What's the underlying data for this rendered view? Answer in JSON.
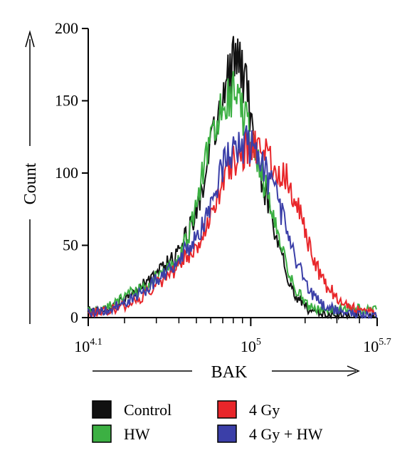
{
  "chart_data": {
    "type": "line",
    "title": "",
    "xlabel": "BAK",
    "ylabel": "Count",
    "x_scale": "log10",
    "xlim_log10": [
      4.1,
      5.7
    ],
    "ylim": [
      0,
      200
    ],
    "x_ticks": [
      {
        "base": "10",
        "exp": "4.1",
        "log10": 4.1
      },
      {
        "base": "10",
        "exp": "5",
        "log10": 5.0
      },
      {
        "base": "10",
        "exp": "5.7",
        "log10": 5.7
      }
    ],
    "y_ticks": [
      0,
      50,
      100,
      150,
      200
    ],
    "grid": false,
    "legend_position": "bottom",
    "series": [
      {
        "name": "Control",
        "color": "#111111",
        "x": [
          4.1,
          4.2,
          4.3,
          4.4,
          4.5,
          4.6,
          4.65,
          4.7,
          4.75,
          4.8,
          4.85,
          4.9,
          4.92,
          4.94,
          4.96,
          4.98,
          5.0,
          5.02,
          5.05,
          5.1,
          5.15,
          5.2,
          5.25,
          5.3,
          5.35,
          5.4,
          5.5,
          5.6,
          5.7
        ],
        "y": [
          5,
          6,
          12,
          22,
          33,
          45,
          58,
          75,
          100,
          130,
          155,
          175,
          185,
          178,
          165,
          155,
          140,
          120,
          100,
          75,
          50,
          30,
          15,
          8,
          3,
          2,
          1,
          1,
          0
        ]
      },
      {
        "name": "HW",
        "color": "#3cb043",
        "x": [
          4.1,
          4.2,
          4.3,
          4.4,
          4.5,
          4.6,
          4.65,
          4.7,
          4.75,
          4.8,
          4.85,
          4.9,
          4.93,
          4.96,
          5.0,
          5.05,
          5.1,
          5.15,
          5.2,
          5.25,
          5.3,
          5.35,
          5.4,
          5.5,
          5.6,
          5.7
        ],
        "y": [
          4,
          8,
          15,
          20,
          30,
          40,
          55,
          80,
          110,
          130,
          145,
          155,
          160,
          140,
          125,
          105,
          80,
          55,
          35,
          20,
          10,
          6,
          4,
          6,
          6,
          5
        ]
      },
      {
        "name": "4 Gy",
        "color": "#e8262a",
        "x": [
          4.1,
          4.2,
          4.3,
          4.4,
          4.5,
          4.6,
          4.7,
          4.8,
          4.85,
          4.9,
          4.95,
          5.0,
          5.05,
          5.1,
          5.15,
          5.2,
          5.25,
          5.3,
          5.35,
          5.4,
          5.45,
          5.5,
          5.6,
          5.7
        ],
        "y": [
          3,
          5,
          8,
          15,
          25,
          35,
          50,
          75,
          95,
          108,
          115,
          118,
          118,
          108,
          100,
          95,
          80,
          60,
          40,
          25,
          18,
          10,
          5,
          3
        ]
      },
      {
        "name": "4 Gy + HW",
        "color": "#3b3fa8",
        "x": [
          4.1,
          4.2,
          4.3,
          4.4,
          4.5,
          4.6,
          4.7,
          4.8,
          4.85,
          4.9,
          4.95,
          5.0,
          5.05,
          5.1,
          5.15,
          5.2,
          5.25,
          5.3,
          5.35,
          5.4,
          5.5,
          5.6,
          5.7
        ],
        "y": [
          3,
          5,
          10,
          18,
          28,
          40,
          55,
          85,
          105,
          115,
          120,
          120,
          110,
          95,
          80,
          60,
          40,
          25,
          15,
          8,
          4,
          2,
          1
        ]
      }
    ]
  }
}
